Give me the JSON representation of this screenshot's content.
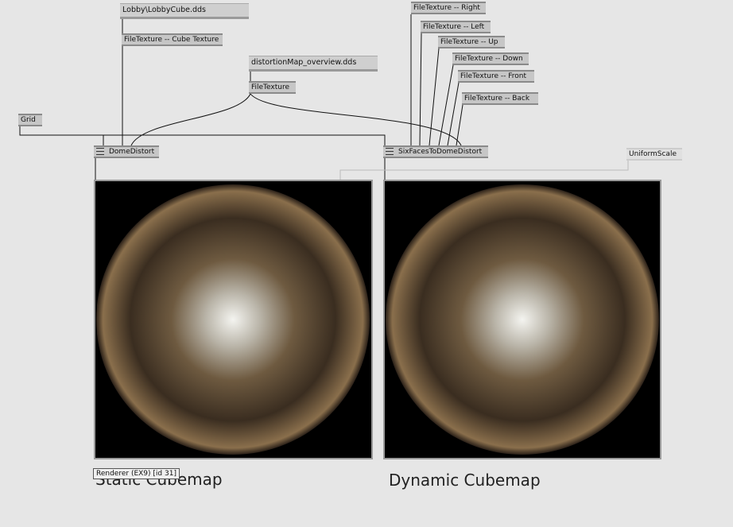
{
  "nodes": [
    {
      "label": "Lobby\\LobbyCube.dds"
    },
    {
      "label": "FileTexture -- Cube Texture"
    },
    {
      "label": "distortionMap_overview.dds"
    },
    {
      "label": "FileTexture"
    },
    {
      "label": "Grid"
    },
    {
      "label": "DomeDistort"
    },
    {
      "label": "SixFacesToDomeDistort"
    },
    {
      "label": "FileTexture -- Right"
    },
    {
      "label": "FileTexture -- Left"
    },
    {
      "label": "FileTexture -- Up"
    },
    {
      "label": "FileTexture -- Down"
    },
    {
      "label": "FileTexture -- Front"
    },
    {
      "label": "FileTexture -- Back"
    },
    {
      "label": "UniformScale"
    }
  ],
  "renderers": [
    {
      "caption": "Static Cubemap"
    },
    {
      "caption": "Dynamic Cubemap"
    }
  ],
  "tooltip": "Renderer (EX9) [id 31]"
}
